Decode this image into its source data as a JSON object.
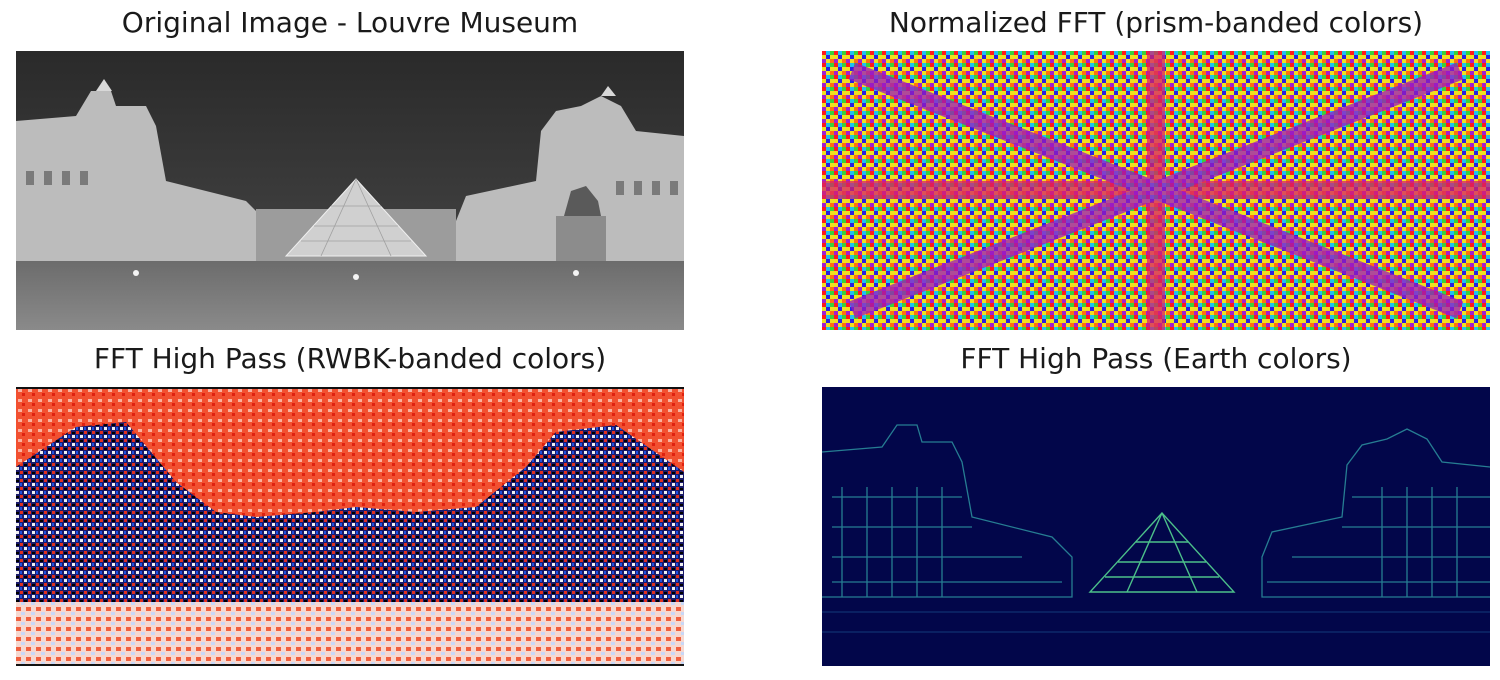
{
  "figure": {
    "panels": [
      {
        "title": "Original Image - Louvre Museum",
        "colormap": "gray"
      },
      {
        "title": "Normalized FFT (prism-banded colors)",
        "colormap": "prism"
      },
      {
        "title": "FFT High Pass (RWBK-banded colors)",
        "colormap": "rwbk"
      },
      {
        "title": "FFT High Pass (Earth colors)",
        "colormap": "earth"
      }
    ]
  }
}
